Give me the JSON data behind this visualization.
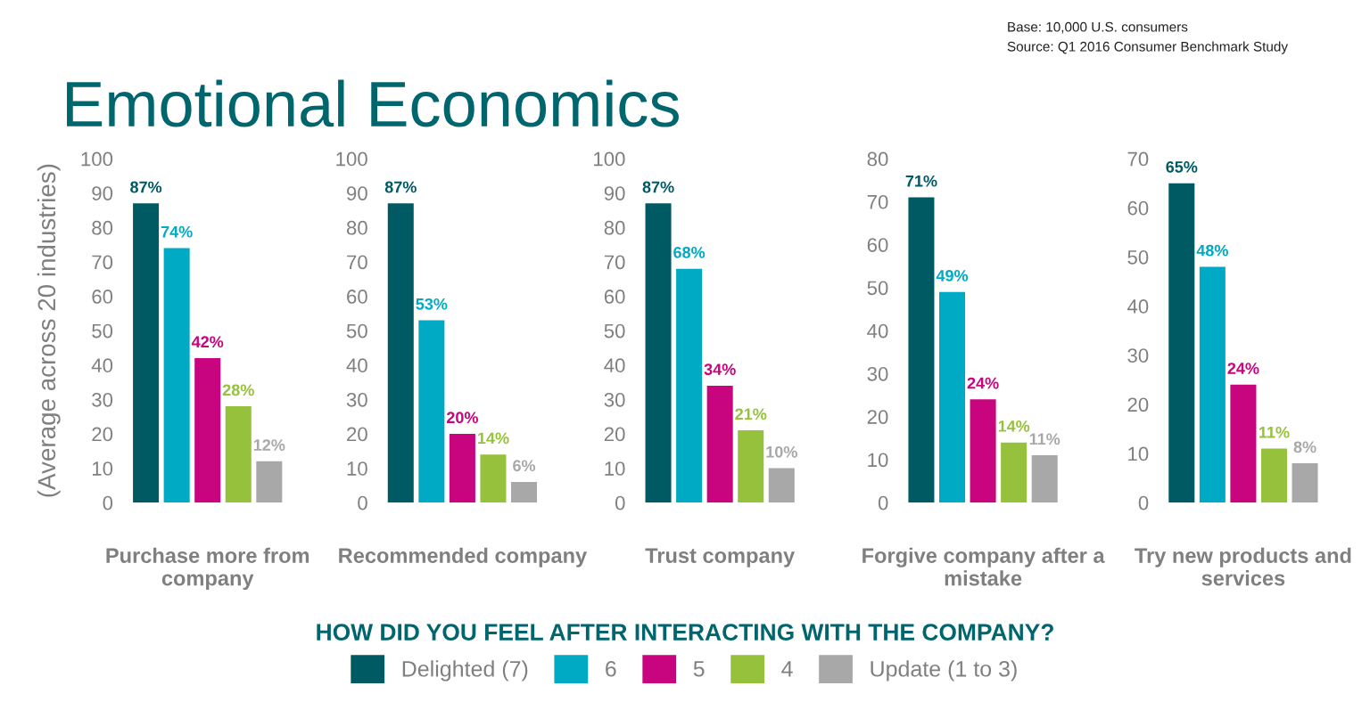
{
  "chart_data": [
    {
      "type": "bar",
      "grid": false,
      "title": "Emotional Economics",
      "ylabel": "(Average across 20 industries)",
      "annotations": [
        "Base: 10,000 U.S. consumers",
        "Source: Q1 2016 Consumer Benchmark Study"
      ],
      "categories": [
        "Purchase more from company"
      ],
      "ylim": [
        0,
        100
      ],
      "yticks": [
        0,
        10,
        20,
        30,
        40,
        50,
        60,
        70,
        80,
        90,
        100
      ],
      "series": [
        {
          "color": "#005a64",
          "values": [
            87
          ],
          "value_labels": [
            "87%"
          ]
        },
        {
          "color": "#00a9c4",
          "values": [
            74
          ],
          "value_labels": [
            "74%"
          ]
        },
        {
          "color": "#c8047e",
          "values": [
            42
          ],
          "value_labels": [
            "42%"
          ]
        },
        {
          "color": "#96c13c",
          "values": [
            28
          ],
          "value_labels": [
            "28%"
          ]
        },
        {
          "color": "#a8a8a8",
          "values": [
            12
          ],
          "value_labels": [
            "12%"
          ]
        }
      ]
    },
    {
      "type": "bar",
      "grid": false,
      "categories": [
        "Recommended company"
      ],
      "ylim": [
        0,
        100
      ],
      "yticks": [
        0,
        10,
        20,
        30,
        40,
        50,
        60,
        70,
        80,
        90,
        100
      ],
      "series": [
        {
          "color": "#005a64",
          "values": [
            87
          ],
          "value_labels": [
            "87%"
          ]
        },
        {
          "color": "#00a9c4",
          "values": [
            53
          ],
          "value_labels": [
            "53%"
          ]
        },
        {
          "color": "#c8047e",
          "values": [
            20
          ],
          "value_labels": [
            "20%"
          ]
        },
        {
          "color": "#96c13c",
          "values": [
            14
          ],
          "value_labels": [
            "14%"
          ]
        },
        {
          "color": "#a8a8a8",
          "values": [
            6
          ],
          "value_labels": [
            "6%"
          ]
        }
      ]
    },
    {
      "type": "bar",
      "grid": false,
      "legend": "bottom",
      "legend_title": "HOW DID YOU FEEL AFTER INTERACTING WITH THE COMPANY?",
      "categories": [
        "Trust company"
      ],
      "ylim": [
        0,
        100
      ],
      "yticks": [
        0,
        10,
        20,
        30,
        40,
        50,
        60,
        70,
        80,
        90,
        100
      ],
      "series": [
        {
          "name": "Delighted (7)",
          "color": "#005a64",
          "values": [
            87
          ],
          "value_labels": [
            "87%"
          ]
        },
        {
          "name": "6",
          "color": "#00a9c4",
          "values": [
            68
          ],
          "value_labels": [
            "68%"
          ]
        },
        {
          "name": "5",
          "color": "#c8047e",
          "values": [
            34
          ],
          "value_labels": [
            "34%"
          ]
        },
        {
          "name": "4",
          "color": "#96c13c",
          "values": [
            21
          ],
          "value_labels": [
            "21%"
          ]
        },
        {
          "name": "Update (1 to 3)",
          "color": "#a8a8a8",
          "values": [
            10
          ],
          "value_labels": [
            "10%"
          ]
        }
      ]
    },
    {
      "type": "bar",
      "grid": false,
      "categories": [
        "Forgive company after a mistake"
      ],
      "ylim": [
        0,
        80
      ],
      "yticks": [
        0,
        10,
        20,
        30,
        40,
        50,
        60,
        70,
        80
      ],
      "series": [
        {
          "color": "#005a64",
          "values": [
            71
          ],
          "value_labels": [
            "71%"
          ]
        },
        {
          "color": "#00a9c4",
          "values": [
            49
          ],
          "value_labels": [
            "49%"
          ]
        },
        {
          "color": "#c8047e",
          "values": [
            24
          ],
          "value_labels": [
            "24%"
          ]
        },
        {
          "color": "#96c13c",
          "values": [
            14
          ],
          "value_labels": [
            "14%"
          ]
        },
        {
          "color": "#a8a8a8",
          "values": [
            11
          ],
          "value_labels": [
            "11%"
          ]
        }
      ]
    },
    {
      "type": "bar",
      "grid": false,
      "categories": [
        "Try new products and services"
      ],
      "ylim": [
        0,
        70
      ],
      "yticks": [
        0,
        10,
        20,
        30,
        40,
        50,
        60,
        70
      ],
      "series": [
        {
          "color": "#005a64",
          "values": [
            65
          ],
          "value_labels": [
            "65%"
          ]
        },
        {
          "color": "#00a9c4",
          "values": [
            48
          ],
          "value_labels": [
            "48%"
          ]
        },
        {
          "color": "#c8047e",
          "values": [
            24
          ],
          "value_labels": [
            "24%"
          ]
        },
        {
          "color": "#96c13c",
          "values": [
            11
          ],
          "value_labels": [
            "11%"
          ]
        },
        {
          "color": "#a8a8a8",
          "values": [
            8
          ],
          "value_labels": [
            "8%"
          ]
        }
      ]
    }
  ]
}
